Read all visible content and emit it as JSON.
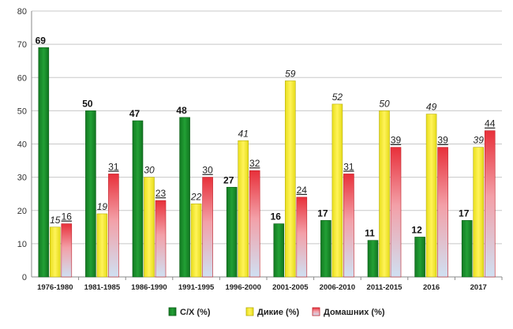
{
  "chart_data": {
    "type": "bar",
    "categories": [
      "1976-1980",
      "1981-1985",
      "1986-1990",
      "1991-1995",
      "1996-2000",
      "2001-2005",
      "2006-2010",
      "2011-2015",
      "2016",
      "2017"
    ],
    "series": [
      {
        "name": "С/Х (%)",
        "values": [
          69,
          50,
          47,
          48,
          27,
          16,
          17,
          11,
          12,
          17
        ],
        "color": "#1a8a2a"
      },
      {
        "name": "Дикие (%)",
        "values": [
          15,
          19,
          30,
          22,
          41,
          59,
          52,
          50,
          49,
          39
        ],
        "color": "#f2ea2a"
      },
      {
        "name": "Домашних (%)",
        "values": [
          16,
          31,
          23,
          30,
          32,
          24,
          31,
          39,
          39,
          44
        ],
        "color": "#e8303a"
      }
    ],
    "yticks": [
      0,
      10,
      20,
      30,
      40,
      50,
      60,
      70,
      80
    ],
    "ylim": [
      0,
      80
    ],
    "grid": true,
    "legend_position": "bottom"
  }
}
